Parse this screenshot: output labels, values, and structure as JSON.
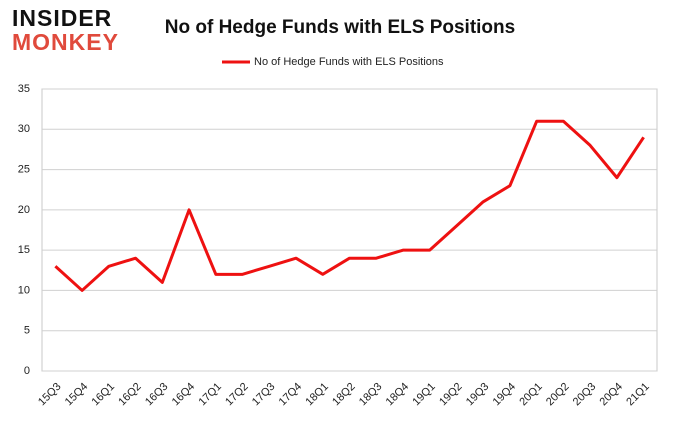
{
  "logo": {
    "line1": "INSIDER",
    "line2": "MONKEY"
  },
  "chart_data": {
    "type": "line",
    "title": "No of Hedge Funds with ELS Positions",
    "categories": [
      "15Q3",
      "15Q4",
      "16Q1",
      "16Q2",
      "16Q3",
      "16Q4",
      "17Q1",
      "17Q2",
      "17Q3",
      "17Q4",
      "18Q1",
      "18Q2",
      "18Q3",
      "18Q4",
      "19Q1",
      "19Q2",
      "19Q3",
      "19Q4",
      "20Q1",
      "20Q2",
      "20Q3",
      "20Q4",
      "21Q1"
    ],
    "series": [
      {
        "name": "No of Hedge Funds with ELS Positions",
        "color": "#ee1111",
        "values": [
          13,
          10,
          13,
          14,
          11,
          20,
          12,
          12,
          13,
          14,
          12,
          14,
          14,
          15,
          15,
          18,
          21,
          23,
          31,
          31,
          28,
          24,
          29
        ]
      }
    ],
    "ylim": [
      0,
      35
    ],
    "yticks": [
      0,
      5,
      10,
      15,
      20,
      25,
      30,
      35
    ],
    "grid": true,
    "legend": "top"
  }
}
